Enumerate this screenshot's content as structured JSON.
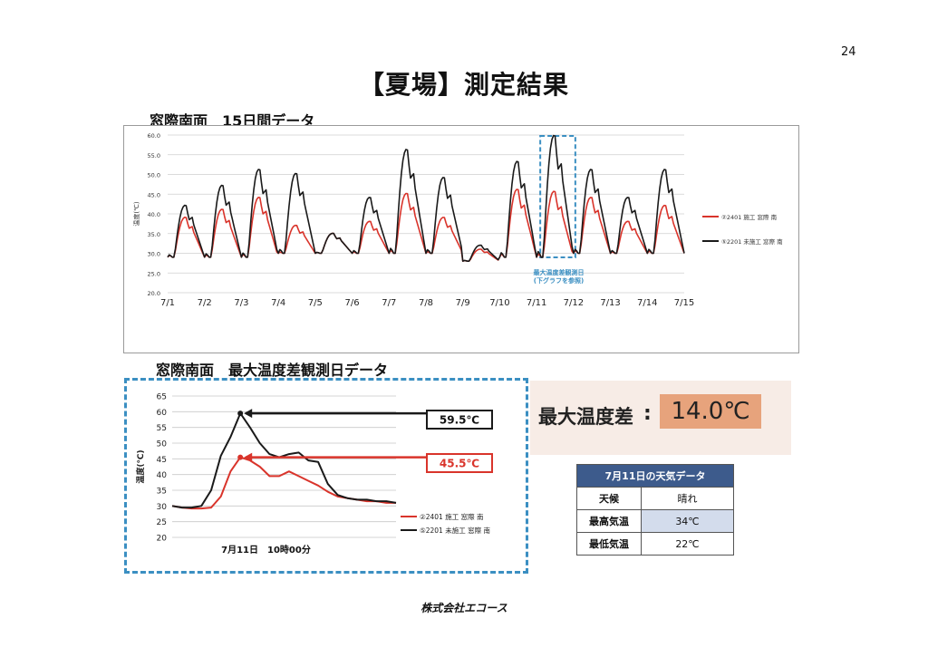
{
  "page": {
    "number": "24",
    "title": "【夏場】測定結果",
    "company": "株式会社エコース"
  },
  "section1": {
    "title": "窓際南面　15日間データ"
  },
  "section2": {
    "title": "窓際南面　最大温度差観測日データ"
  },
  "max_diff": {
    "label": "最大温度差",
    "colon": ":",
    "value": "14.0℃"
  },
  "weather": {
    "title": "7月11日の天気データ",
    "rows": [
      {
        "label": "天候",
        "value": "晴れ"
      },
      {
        "label": "最高気温",
        "value": "34℃"
      },
      {
        "label": "最低気温",
        "value": "22℃"
      }
    ]
  },
  "colors": {
    "series_red": "#d9342b",
    "series_black": "#1a1a1a",
    "highlight": "#3b8fc2"
  },
  "chart_data": [
    {
      "type": "line",
      "ylabel": "温度(℃)",
      "ylim": [
        20,
        60
      ],
      "y_ticks": [
        "20.0",
        "25.0",
        "30.0",
        "35.0",
        "40.0",
        "45.0",
        "50.0",
        "55.0",
        "60.0"
      ],
      "x_ticks": [
        "7/1",
        "7/2",
        "7/3",
        "7/4",
        "7/5",
        "7/6",
        "7/7",
        "7/8",
        "7/9",
        "7/10",
        "7/11",
        "7/12",
        "7/13",
        "7/14",
        "7/15"
      ],
      "grid": true,
      "legend_placement": "right",
      "annotation": {
        "text_lines": [
          "最大温度差観測日",
          "(下グラフを参照)"
        ],
        "range_days": [
          10.0,
          11.0
        ]
      },
      "series": [
        {
          "name": "②2401 施工 窓際 南",
          "color": "#d9342b",
          "daily_peak": [
            39,
            41,
            44,
            37,
            35,
            38,
            45,
            39,
            31,
            46,
            45.5,
            44,
            38,
            42,
            32
          ],
          "daily_min": [
            29,
            29,
            29,
            30,
            30,
            30,
            30,
            30,
            28,
            29,
            29,
            30,
            30,
            30,
            30
          ]
        },
        {
          "name": "⑤2201 未施工 窓際 南",
          "color": "#1a1a1a",
          "daily_peak": [
            42,
            47,
            51,
            50,
            35,
            44,
            56,
            49,
            32,
            53,
            59.5,
            51,
            44,
            51,
            33
          ],
          "daily_min": [
            29,
            29,
            29,
            30,
            30,
            30,
            30,
            30,
            28,
            29,
            29,
            30,
            30,
            30,
            30
          ]
        }
      ]
    },
    {
      "type": "line",
      "xlabel": "7月11日　10時00分",
      "ylabel": "温度(℃)",
      "ylim": [
        20,
        65
      ],
      "y_ticks": [
        "20",
        "25",
        "30",
        "35",
        "40",
        "45",
        "50",
        "55",
        "60",
        "65"
      ],
      "grid": true,
      "legend_placement": "bottom-right",
      "callouts": [
        {
          "text": "59.5℃",
          "series": 1
        },
        {
          "text": "45.5℃",
          "series": 0
        }
      ],
      "x": [
        0,
        1,
        2,
        3,
        4,
        5,
        6,
        7,
        8,
        9,
        10,
        11,
        12,
        13,
        14,
        15,
        16,
        17,
        18,
        19,
        20,
        21,
        22,
        23
      ],
      "series": [
        {
          "name": "②2401 施工 窓際 南",
          "color": "#d9342b",
          "values": [
            30,
            29.5,
            29.2,
            29.2,
            29.5,
            33,
            41,
            45.5,
            44.5,
            42.5,
            39.5,
            39.5,
            41,
            39.5,
            38,
            36.5,
            34.5,
            33,
            32.5,
            32,
            31.5,
            31.5,
            31,
            31
          ],
          "peak_index": 7
        },
        {
          "name": "⑤2201 未施工 窓際 南",
          "color": "#1a1a1a",
          "values": [
            30,
            29.5,
            29.5,
            30,
            35,
            46,
            52,
            59.5,
            55,
            50,
            46.5,
            45.5,
            46.5,
            47,
            44.5,
            44,
            37,
            33.5,
            32.5,
            32,
            32,
            31.5,
            31.5,
            31
          ],
          "peak_index": 7
        }
      ]
    }
  ]
}
